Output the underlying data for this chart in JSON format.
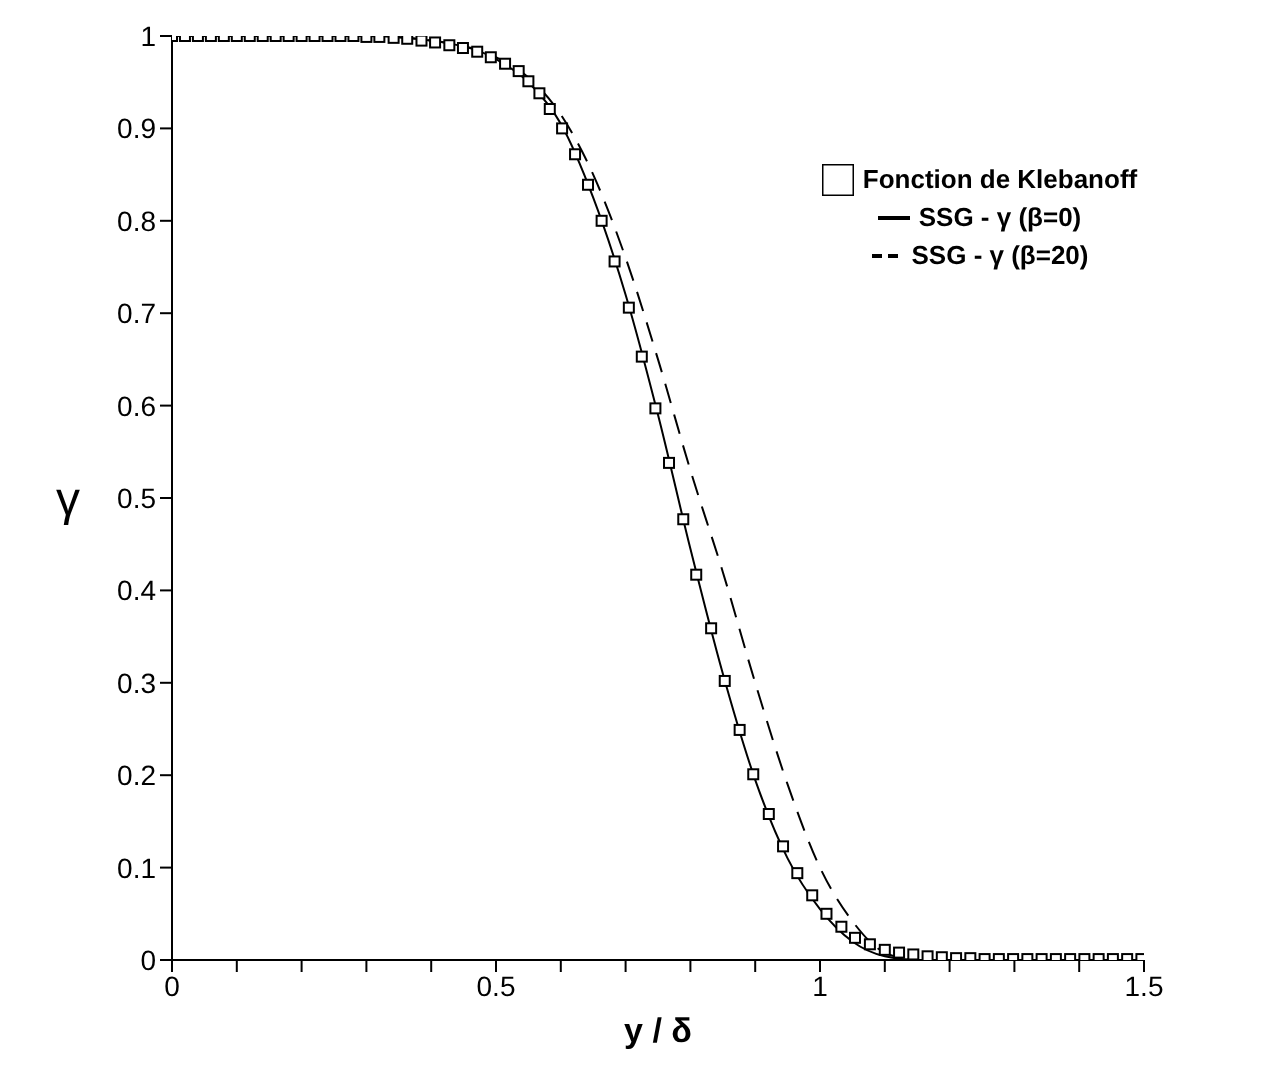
{
  "chart_data": {
    "type": "line",
    "xlabel": "y / δ",
    "ylabel": "γ",
    "xlim": [
      0,
      1.5
    ],
    "ylim": [
      0,
      1
    ],
    "xticks": [
      0,
      {
        "value": 0.1,
        "label": null
      },
      {
        "value": 0.2,
        "label": null
      },
      {
        "value": 0.3,
        "label": null
      },
      {
        "value": 0.4,
        "label": null
      },
      0.5,
      {
        "value": 0.6,
        "label": null
      },
      {
        "value": 0.7,
        "label": null
      },
      {
        "value": 0.8,
        "label": null
      },
      {
        "value": 0.9,
        "label": null
      },
      1,
      {
        "value": 1.1,
        "label": null
      },
      {
        "value": 1.2,
        "label": null
      },
      {
        "value": 1.3,
        "label": null
      },
      {
        "value": 1.4,
        "label": null
      },
      1.5
    ],
    "yticks": [
      0,
      0.1,
      0.2,
      0.3,
      0.4,
      0.5,
      0.6,
      0.7,
      0.8,
      0.9,
      1
    ],
    "grid": false,
    "legend": "top right",
    "series": [
      {
        "name": "Fonction de Klebanoff",
        "type": "scatter",
        "marker": "square",
        "color": "#000000",
        "x": [
          0,
          0.02,
          0.04,
          0.06,
          0.08,
          0.1,
          0.12,
          0.14,
          0.16,
          0.18,
          0.2,
          0.22,
          0.24,
          0.26,
          0.28,
          0.3,
          0.32,
          0.342,
          0.363,
          0.385,
          0.406,
          0.428,
          0.449,
          0.471,
          0.492,
          0.514,
          0.535,
          0.55,
          0.567,
          0.583,
          0.602,
          0.622,
          0.642,
          0.663,
          0.683,
          0.705,
          0.725,
          0.746,
          0.767,
          0.789,
          0.809,
          0.832,
          0.853,
          0.876,
          0.897,
          0.921,
          0.943,
          0.965,
          0.988,
          1.01,
          1.033,
          1.054,
          1.077,
          1.1,
          1.122,
          1.144,
          1.166,
          1.188,
          1.21,
          1.232,
          1.254,
          1.276,
          1.298,
          1.32,
          1.342,
          1.364,
          1.386,
          1.408,
          1.43,
          1.452,
          1.474,
          1.496
        ],
        "values": [
          1,
          1,
          1,
          1,
          1,
          1,
          1,
          1,
          1,
          1,
          1,
          1,
          1,
          1,
          1,
          0.999,
          0.999,
          0.998,
          0.997,
          0.995,
          0.993,
          0.99,
          0.987,
          0.983,
          0.977,
          0.97,
          0.962,
          0.951,
          0.938,
          0.921,
          0.9,
          0.872,
          0.839,
          0.8,
          0.756,
          0.706,
          0.653,
          0.597,
          0.538,
          0.477,
          0.417,
          0.359,
          0.302,
          0.249,
          0.201,
          0.158,
          0.123,
          0.094,
          0.07,
          0.05,
          0.036,
          0.024,
          0.017,
          0.011,
          0.008,
          0.006,
          0.004,
          0.003,
          0.002,
          0.002,
          0.001,
          0.001,
          0.001,
          0.001,
          0.001,
          0.001,
          0.001,
          0.001,
          0.001,
          0.001,
          0.001,
          0.001
        ]
      },
      {
        "name": "SSG - γ (β=0)",
        "type": "line",
        "marker": "none",
        "line_style": "solid",
        "color": "#000000",
        "x": [
          0,
          0.3,
          0.4,
          0.5,
          0.55,
          0.6,
          0.65,
          0.7,
          0.75,
          0.8,
          0.85,
          0.9,
          0.95,
          1.0,
          1.05,
          1.1,
          1.15,
          1.5
        ],
        "values": [
          1,
          1,
          0.995,
          0.975,
          0.95,
          0.905,
          0.825,
          0.72,
          0.59,
          0.445,
          0.31,
          0.195,
          0.11,
          0.055,
          0.02,
          0.004,
          0,
          0
        ]
      },
      {
        "name": "SSG - γ (β=20)",
        "type": "line",
        "marker": "none",
        "line_style": "dashed",
        "color": "#000000",
        "x": [
          0,
          0.3,
          0.4,
          0.5,
          0.55,
          0.6,
          0.65,
          0.7,
          0.75,
          0.8,
          0.85,
          0.9,
          0.95,
          1.0,
          1.05,
          1.1,
          1.15,
          1.5
        ],
        "values": [
          1,
          1,
          0.995,
          0.977,
          0.955,
          0.915,
          0.85,
          0.76,
          0.65,
          0.53,
          0.42,
          0.3,
          0.19,
          0.1,
          0.042,
          0.008,
          0,
          0
        ]
      }
    ]
  }
}
